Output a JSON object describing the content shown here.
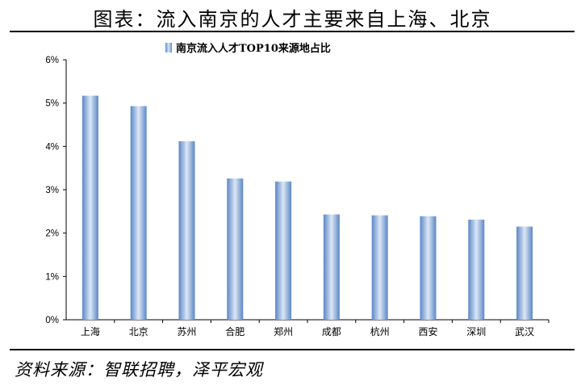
{
  "figure": {
    "title": "图表：流入南京的人才主要来自上海、北京",
    "source": "资料来源：智联招聘，泽平宏观"
  },
  "chart_data": {
    "type": "bar",
    "legend": "南京流入人才TOP10来源地占比",
    "legend_position": "top-center",
    "categories": [
      "上海",
      "北京",
      "苏州",
      "合肥",
      "郑州",
      "成都",
      "杭州",
      "西安",
      "深圳",
      "武汉"
    ],
    "values": [
      5.17,
      4.93,
      4.12,
      3.26,
      3.19,
      2.43,
      2.41,
      2.39,
      2.31,
      2.15
    ],
    "yticks": [
      "0%",
      "1%",
      "2%",
      "3%",
      "4%",
      "5%",
      "6%"
    ],
    "ylim": [
      0,
      6
    ],
    "grid": false,
    "bar_color": "#5b87c5",
    "bar_highlight": "#dce7f6"
  }
}
